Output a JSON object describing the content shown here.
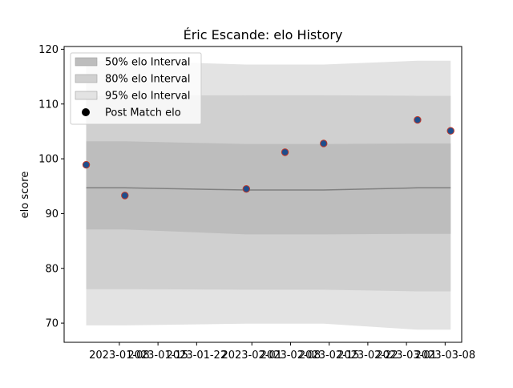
{
  "chart_data": {
    "type": "line",
    "title": "Éric Escande: elo History",
    "xlabel": "",
    "ylabel": "elo score",
    "ylim": [
      66.5,
      120.5
    ],
    "xlim": [
      "2022-12-29",
      "2023-03-11"
    ],
    "grid": false,
    "legend_position": "upper left",
    "x_ticks": [
      "2023-01-08",
      "2023-01-15",
      "2023-01-22",
      "2023-02-01",
      "2023-02-08",
      "2023-02-15",
      "2023-02-22",
      "2023-03-01",
      "2023-03-08"
    ],
    "y_ticks": [
      70,
      80,
      90,
      100,
      110,
      120
    ],
    "legend": [
      {
        "key": "band95",
        "label": "95% elo Interval"
      },
      {
        "key": "band80",
        "label": "80% elo Interval"
      },
      {
        "key": "band50",
        "label": "50% elo Interval"
      },
      {
        "key": "points",
        "label": "Post Match elo"
      }
    ],
    "legend_order": [
      "band50",
      "band80",
      "band95",
      "points"
    ],
    "dates": [
      "2023-01-02",
      "2023-01-09",
      "2023-01-31",
      "2023-02-07",
      "2023-02-14",
      "2023-03-03",
      "2023-03-09"
    ],
    "mean": [
      94.7,
      94.7,
      94.3,
      94.3,
      94.3,
      94.7,
      94.7
    ],
    "band50": {
      "lower": [
        87.1,
        87.1,
        86.2,
        86.2,
        86.2,
        86.3,
        86.3
      ],
      "upper": [
        103.2,
        103.2,
        102.7,
        102.7,
        102.7,
        102.8,
        102.8
      ]
    },
    "band80": {
      "lower": [
        76.2,
        76.2,
        76.1,
        76.1,
        76.1,
        75.8,
        75.8
      ],
      "upper": [
        111.5,
        111.5,
        111.6,
        111.6,
        111.6,
        111.5,
        111.5
      ]
    },
    "band95": {
      "lower": [
        69.6,
        69.6,
        69.9,
        69.9,
        69.9,
        68.8,
        68.8
      ],
      "upper": [
        117.9,
        117.9,
        117.2,
        117.2,
        117.2,
        117.9,
        117.9
      ]
    },
    "points": {
      "x": [
        "2023-01-02",
        "2023-01-09",
        "2023-01-31",
        "2023-02-07",
        "2023-02-14",
        "2023-03-03",
        "2023-03-09"
      ],
      "y": [
        98.9,
        93.3,
        94.5,
        101.2,
        102.8,
        107.1,
        105.1
      ]
    },
    "colors": {
      "band95": "#e3e3e3",
      "band80": "#d0d0d0",
      "band50": "#bdbdbd",
      "mean": "#808080",
      "point_fill": "#1f4e8c",
      "point_edge": "#c0392b",
      "axis": "#000000"
    }
  }
}
